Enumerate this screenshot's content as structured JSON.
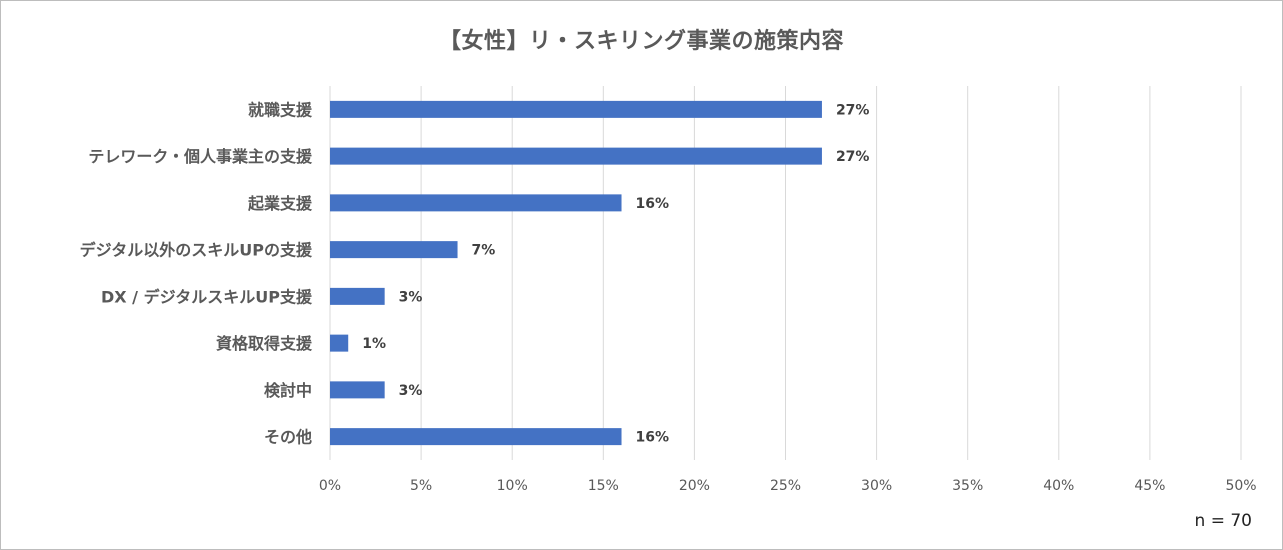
{
  "note": "n = 70",
  "chart_data": {
    "type": "bar",
    "orientation": "horizontal",
    "title": "【女性】リ・スキリング事業の施策内容",
    "categories": [
      "就職支援",
      "テレワーク・個人事業主の支援",
      "起業支援",
      "デジタル以外のスキルUPの支援",
      "DX / デジタルスキルUP支援",
      "資格取得支援",
      "検討中",
      "その他"
    ],
    "values": [
      27,
      27,
      16,
      7,
      3,
      1,
      3,
      16
    ],
    "value_labels": [
      "27%",
      "27%",
      "16%",
      "7%",
      "3%",
      "1%",
      "3%",
      "16%"
    ],
    "xlim": [
      0,
      50
    ],
    "ticks": [
      0,
      5,
      10,
      15,
      20,
      25,
      30,
      35,
      40,
      45,
      50
    ],
    "tick_labels": [
      "0%",
      "5%",
      "10%",
      "15%",
      "20%",
      "25%",
      "30%",
      "35%",
      "40%",
      "45%",
      "50%"
    ],
    "grid": "vertical",
    "bar_color": "#4472c4",
    "grid_color": "#d9d9d9",
    "legend": "none"
  }
}
